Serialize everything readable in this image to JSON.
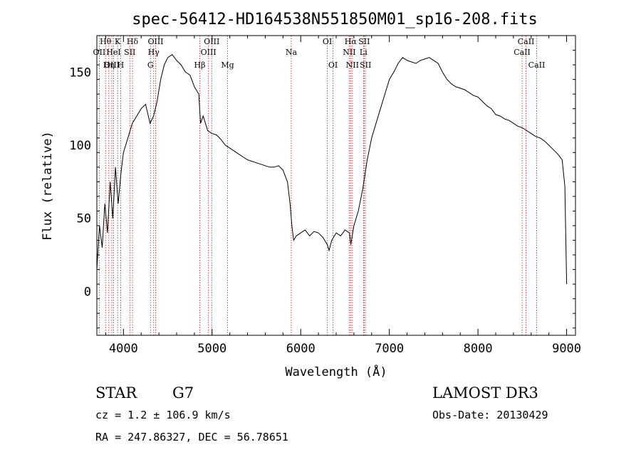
{
  "chart_data": {
    "type": "line",
    "title": "spec-56412-HD164538N551850M01_sp16-208.fits",
    "xlabel": "Wavelength (Å)",
    "ylabel": "Flux (relative)",
    "xlim": [
      3700,
      9100
    ],
    "ylim": [
      -30,
      175
    ],
    "xticks": [
      4000,
      5000,
      6000,
      7000,
      8000,
      9000
    ],
    "yticks": [
      0,
      50,
      100,
      150
    ],
    "grid": false,
    "line_color": "#000000",
    "marker_color": "#b22222",
    "series": [
      {
        "x": [
          3700,
          3730,
          3760,
          3790,
          3820,
          3850,
          3880,
          3910,
          3940,
          3970,
          4000,
          4050,
          4100,
          4150,
          4200,
          4250,
          4300,
          4340,
          4380,
          4420,
          4460,
          4500,
          4550,
          4600,
          4650,
          4700,
          4750,
          4800,
          4850,
          4870,
          4900,
          4950,
          5000,
          5050,
          5100,
          5150,
          5200,
          5250,
          5300,
          5350,
          5400,
          5450,
          5500,
          5550,
          5600,
          5650,
          5700,
          5750,
          5800,
          5850,
          5880,
          5900,
          5920,
          5950,
          6000,
          6050,
          6100,
          6150,
          6200,
          6250,
          6300,
          6320,
          6350,
          6400,
          6450,
          6500,
          6550,
          6565,
          6600,
          6650,
          6700,
          6750,
          6800,
          6850,
          6900,
          6950,
          7000,
          7050,
          7100,
          7150,
          7200,
          7250,
          7300,
          7350,
          7400,
          7450,
          7500,
          7550,
          7600,
          7650,
          7700,
          7750,
          7800,
          7850,
          7900,
          7950,
          8000,
          8050,
          8100,
          8150,
          8200,
          8250,
          8300,
          8350,
          8400,
          8450,
          8500,
          8550,
          8600,
          8650,
          8700,
          8750,
          8800,
          8850,
          8900,
          8950,
          8980,
          9000
        ],
        "y": [
          15,
          45,
          30,
          60,
          40,
          75,
          50,
          85,
          60,
          80,
          95,
          105,
          115,
          120,
          125,
          128,
          115,
          120,
          130,
          145,
          155,
          160,
          162,
          158,
          155,
          150,
          148,
          140,
          135,
          115,
          120,
          110,
          108,
          107,
          104,
          100,
          98,
          96,
          94,
          92,
          90,
          89,
          88,
          87,
          86,
          85,
          85,
          86,
          83,
          75,
          60,
          45,
          35,
          38,
          40,
          42,
          38,
          41,
          40,
          37,
          32,
          28,
          35,
          40,
          38,
          42,
          40,
          32,
          45,
          55,
          70,
          90,
          105,
          115,
          125,
          135,
          145,
          150,
          156,
          160,
          158,
          157,
          156,
          158,
          159,
          160,
          158,
          156,
          150,
          145,
          142,
          140,
          139,
          138,
          136,
          134,
          133,
          130,
          127,
          125,
          121,
          120,
          118,
          117,
          115,
          113,
          112,
          110,
          108,
          106,
          105,
          103,
          100,
          97,
          94,
          90,
          72,
          5
        ]
      }
    ],
    "line_markers": [
      {
        "label": "Hθ",
        "x": 3798,
        "row": 1
      },
      {
        "label": "OII",
        "x": 3727,
        "row": 2
      },
      {
        "label": "OIII",
        "x": 3869,
        "row": 3
      },
      {
        "label": "K",
        "x": 3934,
        "row": 1
      },
      {
        "label": "HeI",
        "x": 3889,
        "row": 2
      },
      {
        "label": "Hη",
        "x": 3835,
        "row": 3
      },
      {
        "label": "Hδ",
        "x": 4102,
        "row": 1
      },
      {
        "label": "SII",
        "x": 4072,
        "row": 2
      },
      {
        "label": "H",
        "x": 3969,
        "row": 3
      },
      {
        "label": "OIII",
        "x": 4363,
        "row": 1
      },
      {
        "label": "Hγ",
        "x": 4341,
        "row": 2
      },
      {
        "label": "G",
        "x": 4305,
        "row": 3
      },
      {
        "label": "OIII",
        "x": 4996,
        "row": 1
      },
      {
        "label": "OIII",
        "x": 4959,
        "row": 2
      },
      {
        "label": "Hβ",
        "x": 4861,
        "row": 3
      },
      {
        "label": "Mg",
        "x": 5175,
        "row": 3
      },
      {
        "label": "Na",
        "x": 5893,
        "row": 2
      },
      {
        "label": "OI",
        "x": 6300,
        "row": 1
      },
      {
        "label": "OI",
        "x": 6364,
        "row": 3
      },
      {
        "label": "Hα",
        "x": 6563,
        "row": 1
      },
      {
        "label": "NII",
        "x": 6548,
        "row": 2
      },
      {
        "label": "NII",
        "x": 6583,
        "row": 3
      },
      {
        "label": "SII",
        "x": 6716,
        "row": 1
      },
      {
        "label": "Li",
        "x": 6708,
        "row": 2
      },
      {
        "label": "SII",
        "x": 6731,
        "row": 3
      },
      {
        "label": "CaII",
        "x": 8542,
        "row": 1
      },
      {
        "label": "CaII",
        "x": 8498,
        "row": 2
      },
      {
        "label": "CaII",
        "x": 8662,
        "row": 3
      }
    ]
  },
  "info": {
    "object_class": "STAR",
    "subclass": "G7",
    "cz": "cz = 1.2 ± 106.9 km/s",
    "coords": "RA = 247.86327, DEC =  56.78651",
    "survey": "LAMOST DR3",
    "obs_date": "Obs-Date: 20130429"
  }
}
